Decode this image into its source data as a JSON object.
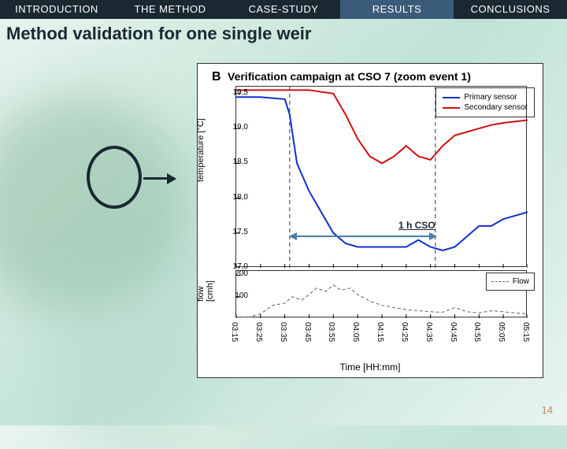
{
  "nav": {
    "items": [
      "INTRODUCTION",
      "THE METHOD",
      "CASE-STUDY",
      "RESULTS",
      "CONCLUSIONS"
    ],
    "active_index": 3
  },
  "subtitle": "Method validation for one single weir",
  "chart": {
    "letter": "B",
    "title": "Verification campaign at CSO 7 (zoom event 1)",
    "legend_upper": [
      {
        "label": "Primary sensor",
        "color": "#1030d0"
      },
      {
        "label": "Secondary sensor",
        "color": "#d01010"
      }
    ],
    "legend_lower": [
      {
        "label": "Flow",
        "color": "#606060",
        "dash": true
      }
    ],
    "ylabel_upper": "temperature [°C]",
    "ylabel_lower": "flow\n[cmh]",
    "xlabel": "Time [HH:mm]",
    "upper": {
      "ylim": [
        17.0,
        19.6
      ],
      "yticks": [
        17.0,
        17.5,
        18.0,
        18.5,
        19.0,
        19.5
      ],
      "xlim": [
        0,
        12
      ],
      "primary": {
        "color": "#1030d0",
        "width": 2,
        "pts": [
          [
            0,
            19.45
          ],
          [
            1,
            19.45
          ],
          [
            2,
            19.42
          ],
          [
            2.2,
            19.2
          ],
          [
            2.5,
            18.5
          ],
          [
            3,
            18.1
          ],
          [
            3.5,
            17.8
          ],
          [
            4,
            17.5
          ],
          [
            4.5,
            17.35
          ],
          [
            5,
            17.3
          ],
          [
            6,
            17.3
          ],
          [
            7,
            17.3
          ],
          [
            7.5,
            17.4
          ],
          [
            8,
            17.3
          ],
          [
            8.5,
            17.25
          ],
          [
            9,
            17.3
          ],
          [
            9.5,
            17.45
          ],
          [
            10,
            17.6
          ],
          [
            10.5,
            17.6
          ],
          [
            11,
            17.7
          ],
          [
            11.5,
            17.75
          ],
          [
            12,
            17.8
          ]
        ]
      },
      "secondary": {
        "color": "#d01010",
        "width": 2,
        "pts": [
          [
            0,
            19.55
          ],
          [
            1,
            19.55
          ],
          [
            2,
            19.55
          ],
          [
            3,
            19.55
          ],
          [
            4,
            19.5
          ],
          [
            4.5,
            19.2
          ],
          [
            5,
            18.85
          ],
          [
            5.5,
            18.6
          ],
          [
            6,
            18.5
          ],
          [
            6.5,
            18.6
          ],
          [
            7,
            18.75
          ],
          [
            7.5,
            18.6
          ],
          [
            8,
            18.55
          ],
          [
            8.5,
            18.75
          ],
          [
            9,
            18.9
          ],
          [
            9.5,
            18.95
          ],
          [
            10,
            19.0
          ],
          [
            10.5,
            19.05
          ],
          [
            11,
            19.08
          ],
          [
            11.5,
            19.1
          ],
          [
            12,
            19.12
          ]
        ]
      },
      "vlines": [
        {
          "x": 2.2,
          "dash": true,
          "color": "#333"
        },
        {
          "x": 8.2,
          "dash": true,
          "color": "#333"
        }
      ]
    },
    "lower": {
      "ylim": [
        0,
        220
      ],
      "yticks": [
        100,
        200
      ],
      "flow": {
        "color": "#606060",
        "dash": true,
        "width": 1,
        "pts": [
          [
            0,
            5
          ],
          [
            0.5,
            5
          ],
          [
            1,
            20
          ],
          [
            1.5,
            60
          ],
          [
            2,
            70
          ],
          [
            2.3,
            100
          ],
          [
            2.7,
            85
          ],
          [
            3,
            110
          ],
          [
            3.3,
            140
          ],
          [
            3.7,
            125
          ],
          [
            4,
            155
          ],
          [
            4.3,
            130
          ],
          [
            4.7,
            140
          ],
          [
            5,
            110
          ],
          [
            5.5,
            80
          ],
          [
            6,
            60
          ],
          [
            6.5,
            50
          ],
          [
            7,
            40
          ],
          [
            7.5,
            35
          ],
          [
            8,
            30
          ],
          [
            8.5,
            28
          ],
          [
            9,
            50
          ],
          [
            9.5,
            30
          ],
          [
            10,
            25
          ],
          [
            10.5,
            35
          ],
          [
            11,
            30
          ],
          [
            11.5,
            25
          ],
          [
            12,
            20
          ]
        ]
      }
    },
    "xticks": [
      "03:15",
      "03:25",
      "03:35",
      "03:45",
      "03:55",
      "04:05",
      "04:15",
      "04:25",
      "04:35",
      "04:45",
      "04:55",
      "05:05",
      "05:15"
    ],
    "cso_annotation": {
      "label": "1 h CSO",
      "x_from": 2.2,
      "x_to": 8.2
    }
  },
  "slide_number": "14",
  "colors": {
    "nav_dark": "#1a2832",
    "nav_blue": "#3a5b7a",
    "accent": "#4a7ba8"
  }
}
